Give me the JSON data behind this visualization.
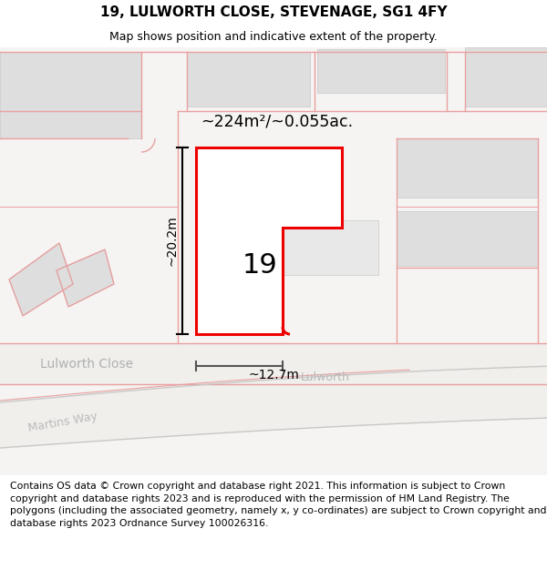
{
  "title_line1": "19, LULWORTH CLOSE, STEVENAGE, SG1 4FY",
  "title_line2": "Map shows position and indicative extent of the property.",
  "area_text": "~224m²/~0.055ac.",
  "dim_height": "~20.2m",
  "dim_width": "~12.7m",
  "label_19": "19",
  "label_lulworth_close_left": "Lulworth Close",
  "label_lulworth_road": "Lulworth",
  "label_martins_way": "Martins Way",
  "disclaimer": "Contains OS data © Crown copyright and database right 2021. This information is subject to Crown copyright and database rights 2023 and is reproduced with the permission of HM Land Registry. The polygons (including the associated geometry, namely x, y co-ordinates) are subject to Crown copyright and database rights 2023 Ordnance Survey 100026316.",
  "map_bg": "#f5f4f2",
  "road_white": "#f8f8f8",
  "building_fill": "#dedede",
  "building_fill2": "#e8e8e8",
  "pink": "#e8a0a0",
  "red": "#ee0000",
  "black": "#1a1a1a",
  "gray_text": "#b0b0b0",
  "title_fontsize": 11,
  "subtitle_fontsize": 9,
  "disclaimer_fontsize": 7.8
}
